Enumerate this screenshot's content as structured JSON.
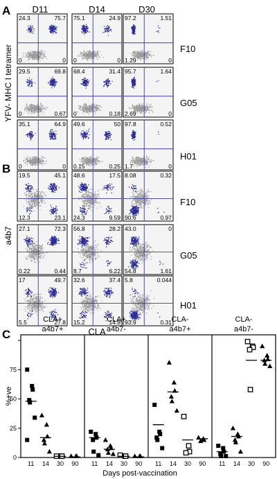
{
  "figure": {
    "panels": [
      {
        "letter": "A",
        "y_axis_label": "YFV- MHC I tetramer",
        "columns": [
          "D11",
          "D14",
          "D30"
        ],
        "rows": [
          {
            "label": "F10",
            "quadrants": [
              [
                "24.3",
                "75.7",
                "0",
                "0"
              ],
              [
                "75.1",
                "24.9",
                "0",
                "0"
              ],
              [
                "97.2",
                "1.51",
                "1.29",
                "0"
              ]
            ]
          },
          {
            "label": "G05",
            "quadrants": [
              [
                "29.5",
                "69.8",
                "0",
                "0.67"
              ],
              [
                "68.4",
                "31.4",
                "0",
                "0.18"
              ],
              [
                "95.7",
                "1.64",
                "2.69",
                "0"
              ]
            ]
          },
          {
            "label": "H01",
            "quadrants": [
              [
                "35.1",
                "64.9",
                "0",
                "0"
              ],
              [
                "49.6",
                "50",
                "0.15",
                "0.25"
              ],
              [
                "97.8",
                "0.52",
                "1.7",
                "0"
              ]
            ]
          }
        ]
      },
      {
        "letter": "B",
        "y_axis_label": "a4b7",
        "x_axis_label": "CLA",
        "columns": [
          "D11",
          "D14",
          "D30"
        ],
        "rows": [
          {
            "label": "F10",
            "quadrants": [
              [
                "19.5",
                "45.1",
                "12.3",
                "23.1"
              ],
              [
                "48.6",
                "17.5",
                "24.3",
                "9.59"
              ],
              [
                "8.08",
                "0.32",
                "90.6",
                "0.97"
              ]
            ]
          },
          {
            "label": "G05",
            "quadrants": [
              [
                "27.1",
                "72.3",
                "0.22",
                "0.44"
              ],
              [
                "56.8",
                "28.2",
                "8.7",
                "6.22"
              ],
              [
                "43.0",
                "0",
                "54.8",
                "1.61"
              ]
            ]
          },
          {
            "label": "H01",
            "quadrants": [
              [
                "17",
                "49.7",
                "5.5",
                "27.8"
              ],
              [
                "32.6",
                "37.4",
                "15.2",
                "14.8"
              ],
              [
                "5.8",
                "0.044",
                "93.9",
                "0.31"
              ]
            ]
          }
        ]
      }
    ]
  },
  "chart_data": {
    "type": "scatter",
    "panel_letter": "C",
    "ylabel": "%+ve",
    "xlabel": "Days post-vaccination",
    "ylim": [
      0,
      100
    ],
    "yticks": [
      "0",
      "25",
      "50",
      "75",
      "100"
    ],
    "groups": [
      {
        "title_line1": "CLA+",
        "title_line2": "a4b7+",
        "days": [
          "11",
          "14",
          "30",
          "90"
        ],
        "points": {
          "11": {
            "marker": "filled-square",
            "values": [
              75,
              61,
              58,
              49,
              47,
              34,
              15
            ]
          },
          "14": {
            "marker": "filled-triangle",
            "values": [
              36,
              28,
              18,
              15,
              12,
              5
            ]
          },
          "30": {
            "marker": "open-square",
            "values": [
              1,
              1,
              0.5
            ]
          },
          "90": {
            "marker": "filled-triangle",
            "values": [
              1,
              0.5,
              0
            ]
          }
        },
        "medians": {
          "11": 48,
          "14": 17,
          "30": 1,
          "90": 0.5
        }
      },
      {
        "title_line1": "CLA+",
        "title_line2": "a4b7-",
        "days": [
          "11",
          "14",
          "30",
          "90"
        ],
        "points": {
          "11": {
            "marker": "filled-square",
            "values": [
              22,
              20,
              17,
              15,
              5,
              2
            ]
          },
          "14": {
            "marker": "filled-triangle",
            "values": [
              15,
              10,
              8,
              7,
              4,
              3
            ]
          },
          "30": {
            "marker": "open-square",
            "values": [
              2,
              1,
              0.5
            ]
          },
          "90": {
            "marker": "filled-triangle",
            "values": [
              1,
              0.5,
              0
            ]
          }
        },
        "medians": {
          "11": 17,
          "14": 7,
          "30": 1,
          "90": 0.5
        }
      },
      {
        "title_line1": "CLA-",
        "title_line2": "a4b7+",
        "days": [
          "11",
          "14",
          "30",
          "90"
        ],
        "points": {
          "11": {
            "marker": "filled-square",
            "values": [
              45,
              22,
              20,
              17,
              15,
              8
            ]
          },
          "14": {
            "marker": "filled-triangle",
            "values": [
              81,
              64,
              57,
              52,
              48,
              40
            ]
          },
          "30": {
            "marker": "open-square",
            "values": [
              35,
              10,
              5,
              4
            ]
          },
          "90": {
            "marker": "filled-triangle",
            "values": [
              17,
              16,
              15,
              14
            ]
          }
        },
        "medians": {
          "11": 28,
          "14": 56,
          "30": 15,
          "90": 16
        }
      },
      {
        "title_line1": "CLA-",
        "title_line2": "a4b7-",
        "days": [
          "11",
          "14",
          "30",
          "90"
        ],
        "points": {
          "11": {
            "marker": "filled-square",
            "values": [
              10,
              8,
              5,
              3,
              1,
              0
            ]
          },
          "14": {
            "marker": "filled-triangle",
            "values": [
              25,
              20,
              18,
              15,
              13,
              5
            ]
          },
          "30": {
            "marker": "open-square",
            "values": [
              99,
              95,
              94,
              92,
              58
            ]
          },
          "90": {
            "marker": "filled-triangle",
            "values": [
              95,
              87,
              84,
              83,
              80,
              78
            ]
          }
        },
        "medians": {
          "11": 5,
          "14": 18,
          "30": 83,
          "90": 83
        }
      }
    ]
  },
  "colors": {
    "dots_bg": "#9a9a9a",
    "dots_fg": "#2b2b99",
    "gate_line": "#3a3aa0",
    "plot_bg": "#f4f4f4",
    "axis": "#000000"
  }
}
